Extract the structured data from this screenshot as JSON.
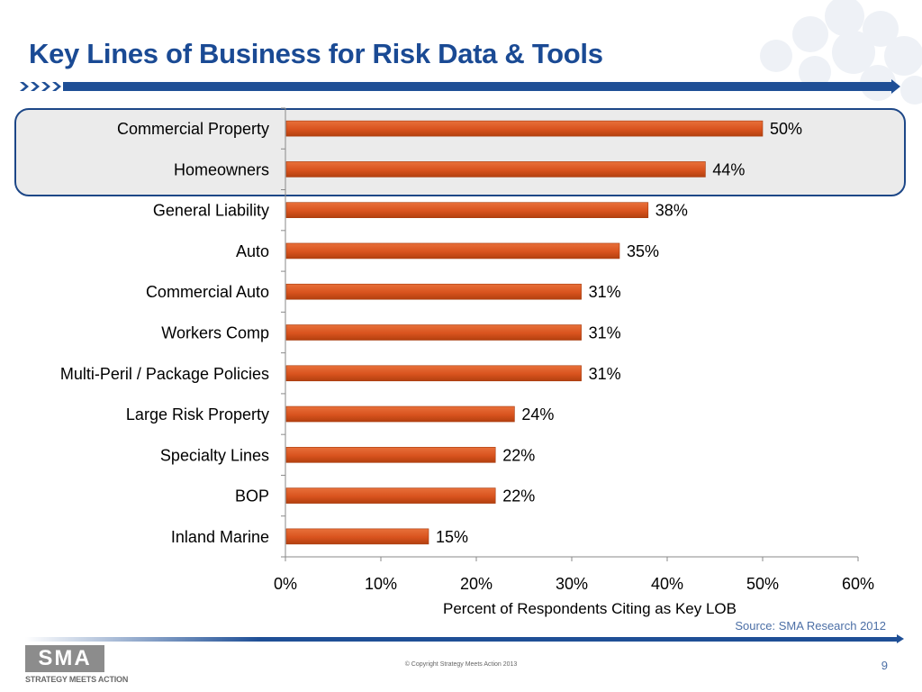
{
  "slide": {
    "title": "Key Lines of Business for Risk Data & Tools",
    "source": "Source: SMA Research 2012",
    "copyright": "© Copyright Strategy Meets Action 2013",
    "page_number": "9"
  },
  "logo": {
    "text": "SMA",
    "tagline": "STRATEGY MEETS ACTION"
  },
  "colors": {
    "title": "#1a4a94",
    "bar": "#d9531e",
    "highlight_border": "#1d4787",
    "highlight_fill": "#ebebeb"
  },
  "chart_data": {
    "type": "bar",
    "orientation": "horizontal",
    "categories": [
      "Commercial Property",
      "Homeowners",
      "General Liability",
      "Auto",
      "Commercial Auto",
      "Workers Comp",
      "Multi-Peril / Package Policies",
      "Large Risk Property",
      "Specialty Lines",
      "BOP",
      "Inland Marine"
    ],
    "values": [
      50,
      44,
      38,
      35,
      31,
      31,
      31,
      24,
      22,
      22,
      15
    ],
    "value_labels": [
      "50%",
      "44%",
      "38%",
      "35%",
      "31%",
      "31%",
      "31%",
      "24%",
      "22%",
      "22%",
      "15%"
    ],
    "xlabel": "Percent of Respondents Citing as Key LOB",
    "ylabel": "",
    "xlim": [
      0,
      60
    ],
    "xticks": [
      "0%",
      "10%",
      "20%",
      "30%",
      "40%",
      "50%",
      "60%"
    ],
    "grid": false,
    "legend": "none",
    "highlighted_categories": [
      "Commercial Property",
      "Homeowners"
    ]
  }
}
